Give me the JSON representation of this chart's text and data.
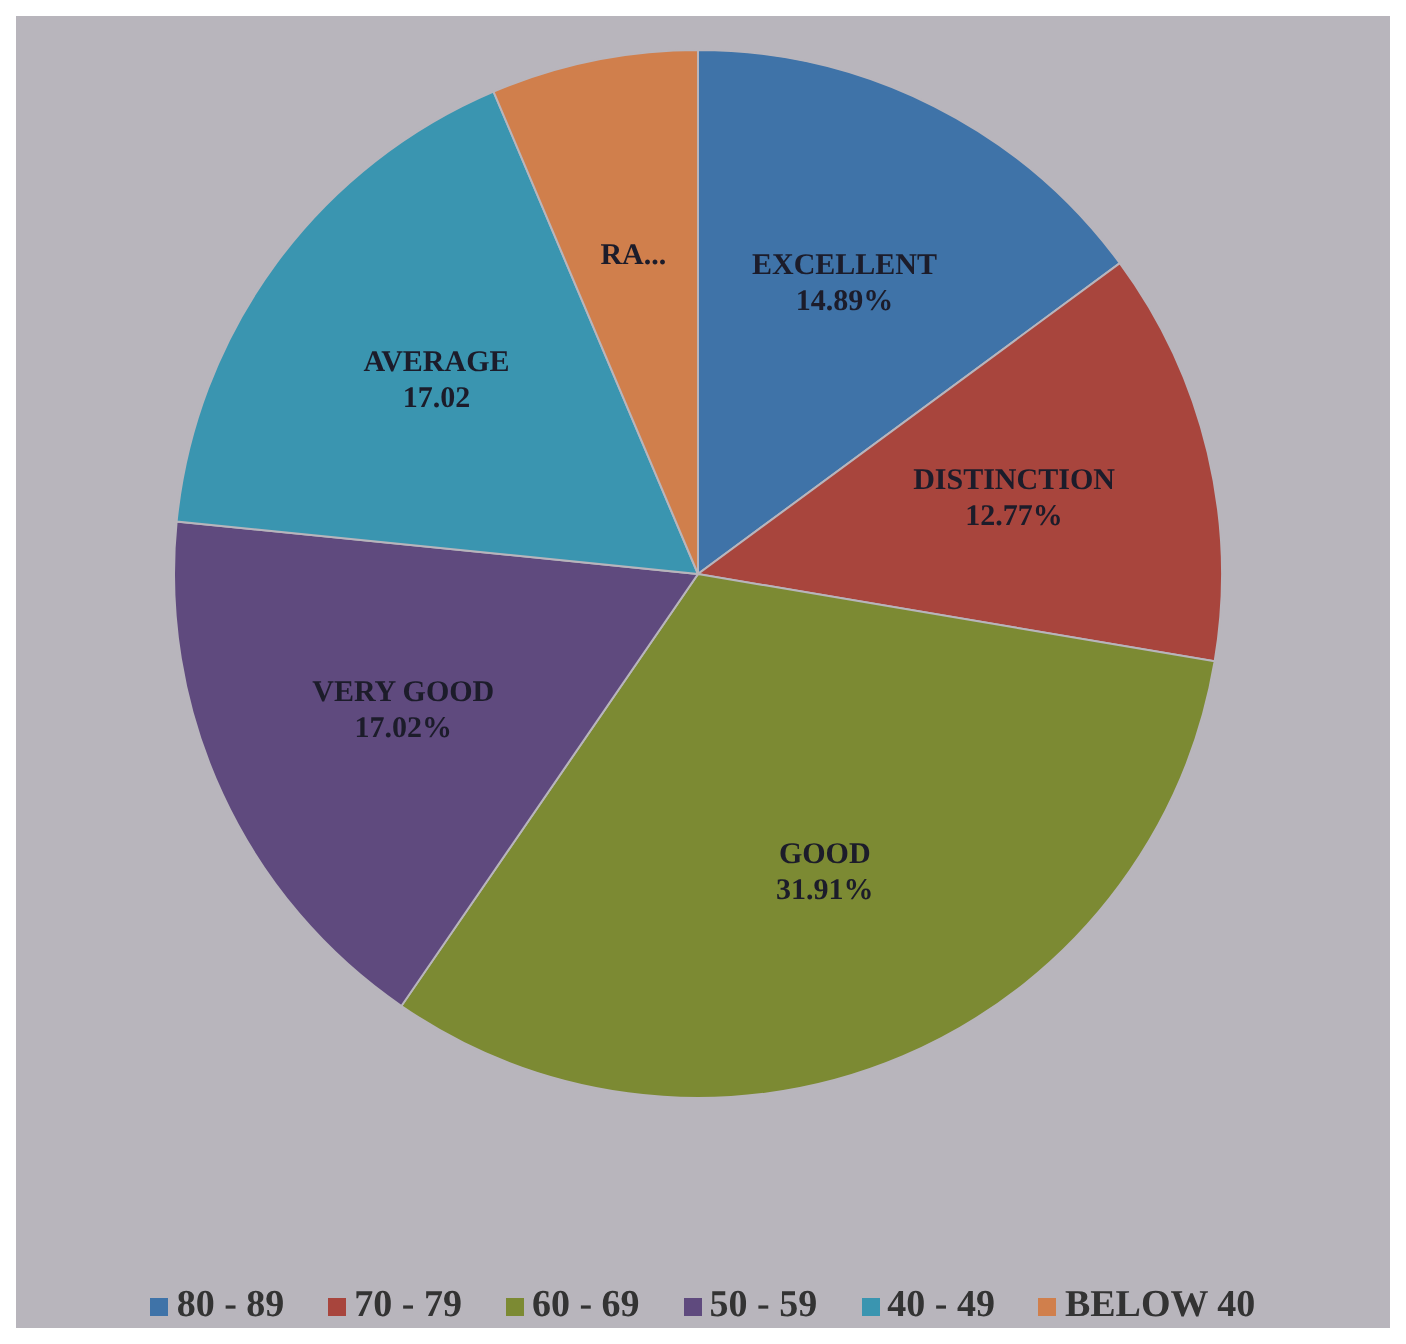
{
  "chart_data": {
    "type": "pie",
    "categories": [
      "80 - 89",
      "70 - 79",
      "60 - 69",
      "50 - 59",
      "40 - 49",
      "BELOW 40"
    ],
    "values": [
      14.89,
      12.77,
      31.91,
      17.02,
      17.02,
      6.38
    ],
    "colors": [
      "#3f73a8",
      "#a8453d",
      "#7c8a33",
      "#5f4a7e",
      "#3a95b0",
      "#d07f4c"
    ],
    "value_labels": [
      "EXCELLENT\n14.89%",
      "DISTINCTION\n12.77%",
      "GOOD\n31.91%",
      "VERY GOOD\n17.02%",
      "AVERAGE\n17.02",
      "RA..."
    ],
    "legend": "bottom"
  }
}
